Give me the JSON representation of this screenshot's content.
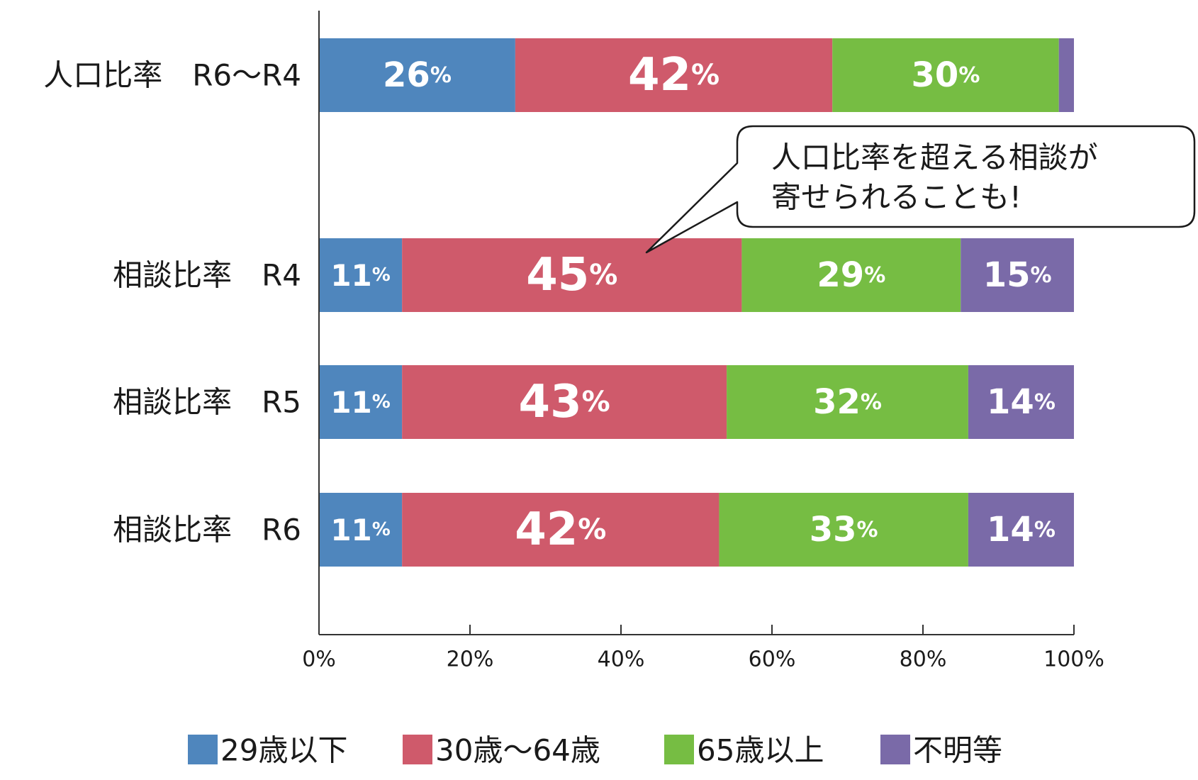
{
  "chart_data": {
    "type": "bar",
    "orientation": "horizontal",
    "stacked": true,
    "categories": [
      "人口比率　R6〜R4",
      "相談比率　R4",
      "相談比率　R5",
      "相談比率　R6"
    ],
    "series": [
      {
        "name": "29歳以下",
        "color": "#4f86bd",
        "values": [
          26,
          11,
          11,
          11
        ]
      },
      {
        "name": "30歳〜64歳",
        "color": "#cf5a6b",
        "values": [
          42,
          45,
          43,
          42
        ]
      },
      {
        "name": "65歳以上",
        "color": "#76bd43",
        "values": [
          30,
          29,
          32,
          33
        ]
      },
      {
        "name": "不明等",
        "color": "#7a6aa8",
        "values": [
          2,
          15,
          14,
          14
        ]
      }
    ],
    "xlim": [
      0,
      100
    ],
    "x_ticks": [
      "0%",
      "20%",
      "40%",
      "60%",
      "80%",
      "100%"
    ],
    "percent_symbol": "%",
    "legend_position": "bottom",
    "grid": false,
    "annotation": {
      "lines": [
        "人口比率を超える相談が",
        "寄せられることも!"
      ]
    }
  }
}
